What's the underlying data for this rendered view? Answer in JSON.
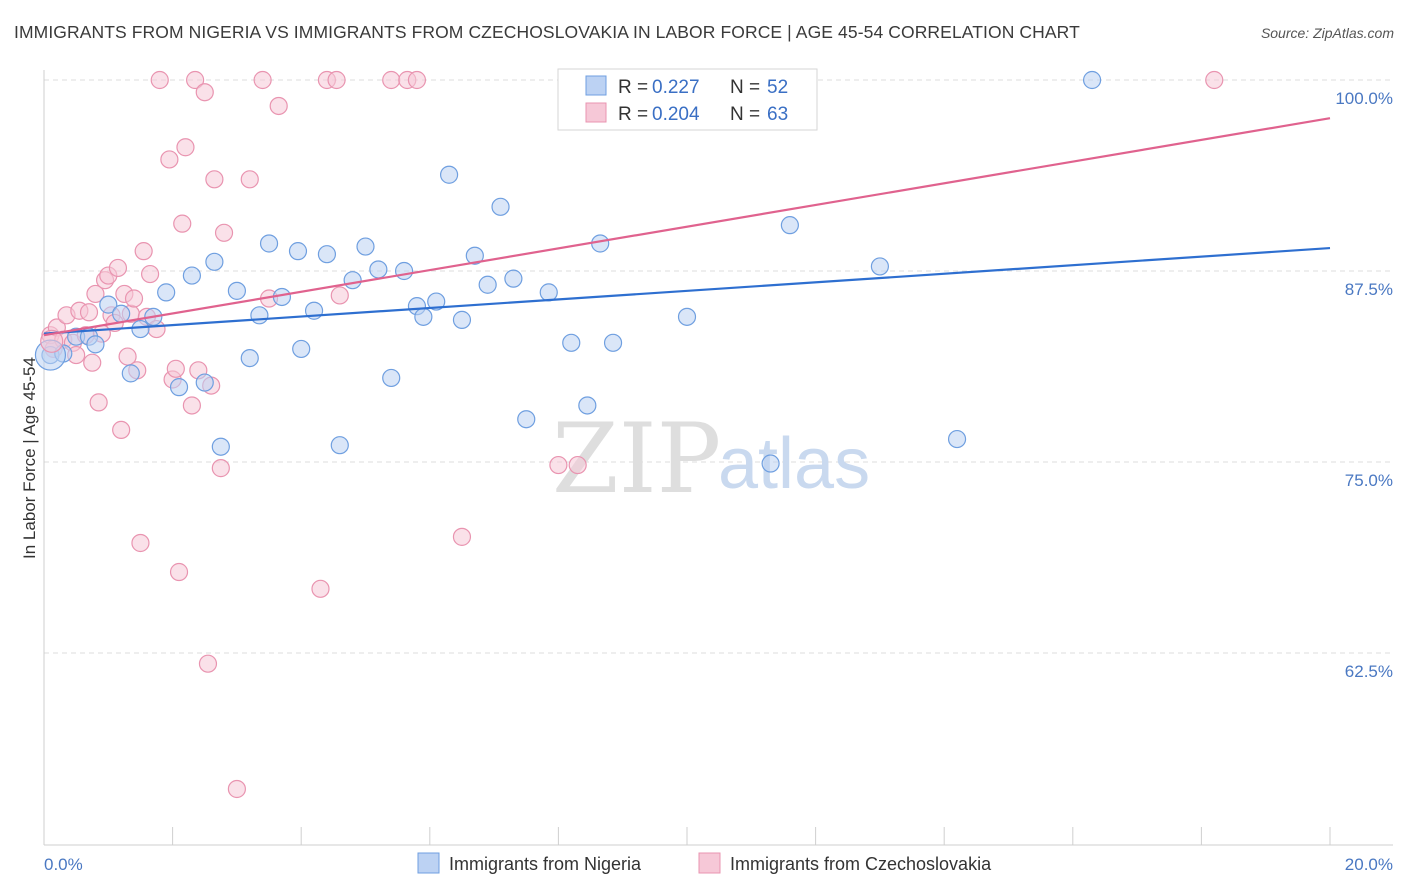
{
  "title": "IMMIGRANTS FROM NIGERIA VS IMMIGRANTS FROM CZECHOSLOVAKIA IN LABOR FORCE | AGE 45-54 CORRELATION CHART",
  "source": "Source: ZipAtlas.com",
  "watermark": {
    "zip": "ZIP",
    "atlas": "atlas"
  },
  "legend": {
    "r_label": "R =",
    "n_label": "N =",
    "entries": [
      {
        "r": "0.227",
        "n": "52"
      },
      {
        "r": "0.204",
        "n": "63"
      }
    ]
  },
  "bottom_legend": [
    "Immigrants from Nigeria",
    "Immigrants from Czechoslovakia"
  ],
  "chart_data": {
    "type": "scatter",
    "title": "IMMIGRANTS FROM NIGERIA VS IMMIGRANTS FROM CZECHOSLOVAKIA IN LABOR FORCE | AGE 45-54 CORRELATION CHART",
    "xlabel": "",
    "ylabel": "In Labor Force | Age 45-54",
    "xlim": [
      0,
      20
    ],
    "ylim": [
      50,
      101.5
    ],
    "x_tick_labels": [
      "0.0%",
      "20.0%"
    ],
    "y_ticks": [
      62.5,
      75.0,
      87.5,
      100.0
    ],
    "y_tick_labels": [
      "62.5%",
      "75.0%",
      "87.5%",
      "100.0%"
    ],
    "grid": true,
    "legend_position": "top-center",
    "series": [
      {
        "name": "Immigrants from Nigeria",
        "color": "#6f9fe0",
        "fill": "#bcd2f3",
        "line_color": "#2e6fd0",
        "r": 0.227,
        "n": 52,
        "trend": [
          [
            0,
            83.4
          ],
          [
            20,
            89.0
          ]
        ],
        "points": [
          [
            0.1,
            82.0
          ],
          [
            0.3,
            82.1
          ],
          [
            0.5,
            83.2
          ],
          [
            0.7,
            83.2
          ],
          [
            0.8,
            82.7
          ],
          [
            1.0,
            85.3
          ],
          [
            1.2,
            84.7
          ],
          [
            1.35,
            80.8
          ],
          [
            1.5,
            83.7
          ],
          [
            1.7,
            84.5
          ],
          [
            1.9,
            86.1
          ],
          [
            2.1,
            79.9
          ],
          [
            2.3,
            87.2
          ],
          [
            2.5,
            80.2
          ],
          [
            2.65,
            88.1
          ],
          [
            2.75,
            76.0
          ],
          [
            3.0,
            86.2
          ],
          [
            3.2,
            81.8
          ],
          [
            3.35,
            84.6
          ],
          [
            3.5,
            89.3
          ],
          [
            3.7,
            85.8
          ],
          [
            3.95,
            88.8
          ],
          [
            4.0,
            82.4
          ],
          [
            4.2,
            84.9
          ],
          [
            4.4,
            88.6
          ],
          [
            4.6,
            76.1
          ],
          [
            4.8,
            86.9
          ],
          [
            5.0,
            89.1
          ],
          [
            5.2,
            87.6
          ],
          [
            5.4,
            80.5
          ],
          [
            5.6,
            87.5
          ],
          [
            5.8,
            85.2
          ],
          [
            5.9,
            84.5
          ],
          [
            6.1,
            85.5
          ],
          [
            6.3,
            93.8
          ],
          [
            6.5,
            84.3
          ],
          [
            6.7,
            88.5
          ],
          [
            6.9,
            86.6
          ],
          [
            7.1,
            91.7
          ],
          [
            7.3,
            87.0
          ],
          [
            7.5,
            77.8
          ],
          [
            7.85,
            86.1
          ],
          [
            8.2,
            82.8
          ],
          [
            8.45,
            78.7
          ],
          [
            8.65,
            89.3
          ],
          [
            8.85,
            82.8
          ],
          [
            10.0,
            84.5
          ],
          [
            11.3,
            74.9
          ],
          [
            11.6,
            90.5
          ],
          [
            13.0,
            87.8
          ],
          [
            14.2,
            76.5
          ],
          [
            16.3,
            100.0
          ]
        ]
      },
      {
        "name": "Immigrants from Czechoslovakia",
        "color": "#e994b0",
        "fill": "#f6c8d7",
        "line_color": "#e0628e",
        "r": 0.204,
        "n": 63,
        "trend": [
          [
            0,
            83.3
          ],
          [
            20,
            97.5
          ]
        ],
        "points": [
          [
            0.1,
            83.3
          ],
          [
            0.15,
            82.4
          ],
          [
            0.2,
            83.8
          ],
          [
            0.3,
            83.0
          ],
          [
            0.35,
            84.6
          ],
          [
            0.45,
            82.8
          ],
          [
            0.5,
            82.0
          ],
          [
            0.55,
            84.9
          ],
          [
            0.65,
            83.3
          ],
          [
            0.7,
            84.8
          ],
          [
            0.75,
            81.5
          ],
          [
            0.8,
            86.0
          ],
          [
            0.85,
            78.9
          ],
          [
            0.9,
            83.4
          ],
          [
            0.95,
            86.9
          ],
          [
            1.0,
            87.2
          ],
          [
            1.05,
            84.6
          ],
          [
            1.1,
            84.1
          ],
          [
            1.15,
            87.7
          ],
          [
            1.2,
            77.1
          ],
          [
            1.25,
            86.0
          ],
          [
            1.3,
            81.9
          ],
          [
            1.35,
            84.7
          ],
          [
            1.4,
            85.7
          ],
          [
            1.45,
            81.0
          ],
          [
            1.5,
            69.7
          ],
          [
            1.55,
            88.8
          ],
          [
            1.6,
            84.5
          ],
          [
            1.65,
            87.3
          ],
          [
            1.75,
            83.7
          ],
          [
            1.8,
            100.0
          ],
          [
            1.95,
            94.8
          ],
          [
            2.0,
            80.4
          ],
          [
            2.05,
            81.1
          ],
          [
            2.1,
            67.8
          ],
          [
            2.15,
            90.6
          ],
          [
            2.2,
            95.6
          ],
          [
            2.3,
            78.7
          ],
          [
            2.35,
            100.0
          ],
          [
            2.4,
            81.0
          ],
          [
            2.5,
            99.2
          ],
          [
            2.55,
            61.8
          ],
          [
            2.6,
            80.0
          ],
          [
            2.65,
            93.5
          ],
          [
            2.75,
            74.6
          ],
          [
            2.8,
            90.0
          ],
          [
            3.0,
            53.6
          ],
          [
            3.2,
            93.5
          ],
          [
            3.4,
            100.0
          ],
          [
            3.5,
            85.7
          ],
          [
            3.65,
            98.3
          ],
          [
            4.3,
            66.7
          ],
          [
            4.4,
            100.0
          ],
          [
            4.55,
            100.0
          ],
          [
            4.6,
            85.9
          ],
          [
            5.4,
            100.0
          ],
          [
            5.65,
            100.0
          ],
          [
            5.8,
            100.0
          ],
          [
            6.5,
            70.1
          ],
          [
            8.0,
            74.8
          ],
          [
            8.3,
            74.8
          ],
          [
            9.75,
            100.0
          ],
          [
            18.2,
            100.0
          ]
        ]
      }
    ]
  }
}
